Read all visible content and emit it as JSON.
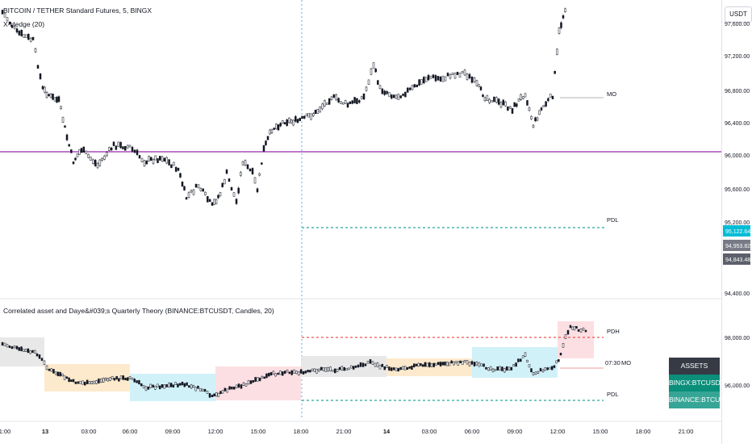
{
  "header": {
    "symbol_line": "BITCOIN / TETHER Standard Futures, 5, BINGX",
    "indicator_line": "X-Hedge (20)"
  },
  "lower_pane": {
    "title": "Correlated asset and Daye&#039;s Quarterly Theory (BINANCE:BTCUSDT, Candles, 20)"
  },
  "price_axis": {
    "currency_button": "USDT",
    "ticks": [
      "97,600.00",
      "97,200.00",
      "96,800.00",
      "96,400.00",
      "96,000.00",
      "95,600.00",
      "95,200.00",
      "94,400.00"
    ],
    "lower_ticks": [
      "98,000.00",
      "96,000.00"
    ]
  },
  "price_tags": [
    {
      "value": "95,122.64",
      "color": "#00bcd4"
    },
    {
      "value": "94,953.82",
      "color": "#787b86"
    },
    {
      "value": "94,843.48",
      "color": "#5d606b"
    }
  ],
  "levels": {
    "upper": {
      "mo": "MO",
      "pdl": "PDL"
    },
    "lower": {
      "pdh": "PDH",
      "mo_time": "07:30",
      "mo": "MO",
      "pdl": "PDL"
    }
  },
  "time_axis": [
    "1:00",
    "13",
    "03:00",
    "06:00",
    "09:00",
    "12:00",
    "15:00",
    "18:00",
    "21:00",
    "14",
    "03:00",
    "06:00",
    "09:00",
    "12:00",
    "15:00",
    "18:00",
    "21:00"
  ],
  "assets_table": {
    "header": "ASSETS",
    "rows": [
      "BINGX:BTCUSDT.PS",
      "BINANCE:BTCUSDT"
    ]
  },
  "colors": {
    "purple_line": "#9c27b0",
    "green_dashed": "#26a69a",
    "red_dashed": "#ef5350",
    "session_orange": "#fde6c4",
    "session_blue": "#c9eef7",
    "session_pink": "#fbd9dd",
    "session_gray": "#e6e6e6",
    "assets_header": "#363a45",
    "assets_row_1": "#0a8f7b",
    "assets_row_2": "#36a596"
  }
}
